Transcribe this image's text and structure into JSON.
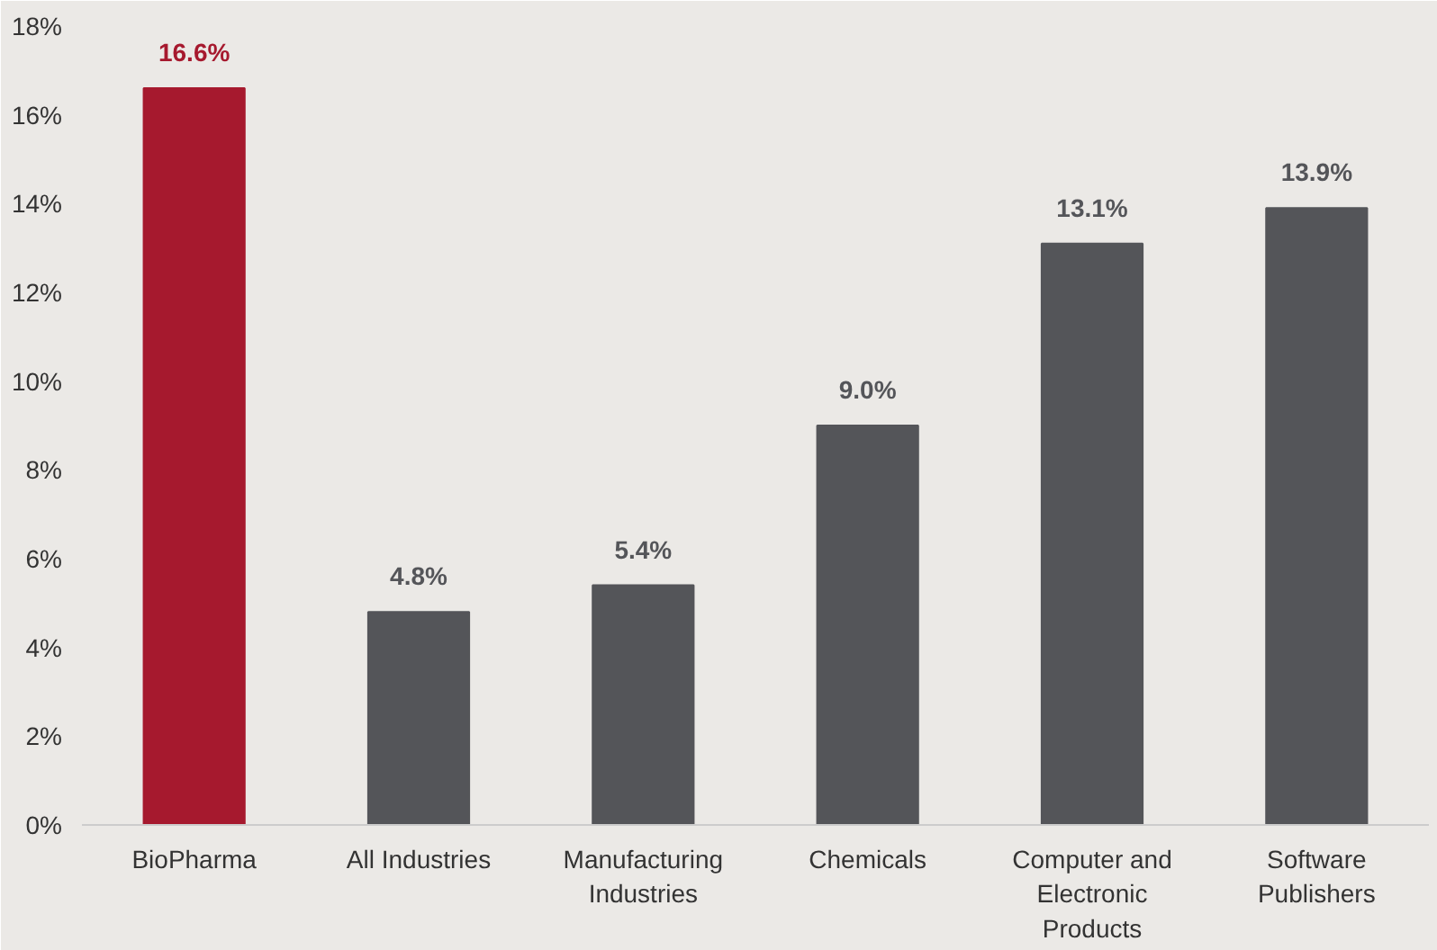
{
  "chart_data": {
    "type": "bar",
    "categories": [
      "BioPharma",
      "All Industries",
      "Manufacturing Industries",
      "Chemicals",
      "Computer and Electronic Products",
      "Software Publishers"
    ],
    "values": [
      16.6,
      4.8,
      5.4,
      9.0,
      13.1,
      13.9
    ],
    "colors": [
      "#a6192e",
      "#545559",
      "#545559",
      "#545559",
      "#545559",
      "#545559"
    ],
    "value_labels": [
      "16.6%",
      "4.8%",
      "5.4%",
      "9.0%",
      "13.1%",
      "13.9%"
    ],
    "ylim": [
      0,
      18
    ],
    "yticks": [
      {
        "value": 0,
        "label": "0%"
      },
      {
        "value": 2,
        "label": "2%"
      },
      {
        "value": 4,
        "label": "4%"
      },
      {
        "value": 6,
        "label": "6%"
      },
      {
        "value": 8,
        "label": "8%"
      },
      {
        "value": 10,
        "label": "10%"
      },
      {
        "value": 12,
        "label": "12%"
      },
      {
        "value": 14,
        "label": "14%"
      },
      {
        "value": 16,
        "label": "16%"
      },
      {
        "value": 18,
        "label": "18%"
      }
    ],
    "grid": false
  }
}
